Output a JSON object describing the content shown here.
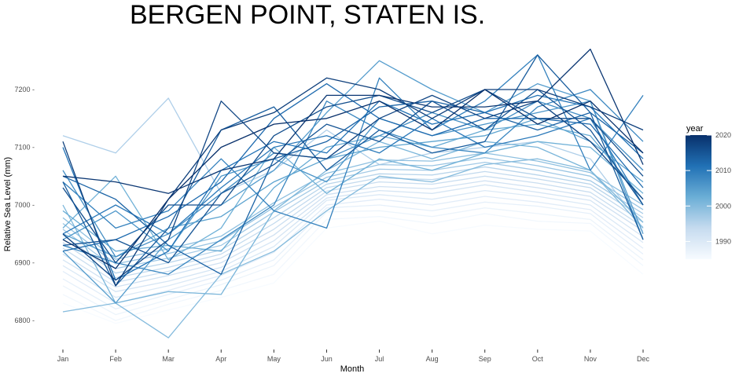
{
  "chart_data": {
    "type": "line",
    "title": "BERGEN POINT, STATEN IS.",
    "xlabel": "Month",
    "ylabel": "Relative Sea Level (mm)",
    "categories": [
      "Jan",
      "Feb",
      "Mar",
      "Apr",
      "May",
      "Jun",
      "Jul",
      "Aug",
      "Sep",
      "Oct",
      "Nov",
      "Dec"
    ],
    "ylim": [
      6755,
      6285
    ],
    "yticks": [
      6800,
      6900,
      7000,
      7100,
      7200
    ],
    "yticks_labels": [
      "6800 -",
      "6900 -",
      "7000 -",
      "7100 -",
      "7200 -"
    ],
    "grid": false,
    "legend": {
      "title": "year",
      "position": "right",
      "colorbar_range": [
        1985,
        2020
      ],
      "ticks": [
        1990,
        2000,
        2010,
        2020
      ],
      "colors": [
        "#f7fbff",
        "#c6dbef",
        "#6baed6",
        "#2171b5",
        "#08306b"
      ]
    },
    "series": [
      {
        "year": 1985,
        "values": [
          6830,
          6795,
          6818,
          6840,
          6865,
          6960,
          6972,
          6950,
          6965,
          6958,
          6955,
          6880
        ]
      },
      {
        "year": 1986,
        "values": [
          6845,
          6800,
          6828,
          6852,
          6880,
          6975,
          6980,
          6968,
          6985,
          6972,
          6968,
          6895
        ]
      },
      {
        "year": 1987,
        "values": [
          6860,
          6810,
          6836,
          6862,
          6895,
          6988,
          6990,
          6980,
          6995,
          6985,
          6975,
          6905
        ]
      },
      {
        "year": 1988,
        "values": [
          6872,
          6820,
          6845,
          6870,
          6905,
          6995,
          7000,
          6990,
          7005,
          6998,
          6985,
          6915
        ]
      },
      {
        "year": 1989,
        "values": [
          6885,
          6830,
          6852,
          6878,
          6918,
          7000,
          7010,
          7000,
          7015,
          7005,
          6992,
          6925
        ]
      },
      {
        "year": 1990,
        "values": [
          6895,
          6840,
          6860,
          6885,
          6928,
          7008,
          7018,
          7010,
          7025,
          7015,
          7000,
          6935
        ]
      },
      {
        "year": 1991,
        "values": [
          6905,
          6850,
          6868,
          6892,
          6938,
          7012,
          7025,
          7020,
          7035,
          7022,
          7008,
          6945
        ]
      },
      {
        "year": 1992,
        "values": [
          6915,
          6858,
          6878,
          6900,
          6948,
          7018,
          7032,
          7028,
          7042,
          7030,
          7015,
          6955
        ]
      },
      {
        "year": 1993,
        "values": [
          6925,
          6866,
          6885,
          6908,
          6958,
          7024,
          7040,
          7036,
          7050,
          7038,
          7022,
          6962
        ]
      },
      {
        "year": 1994,
        "values": [
          6935,
          6874,
          6892,
          6915,
          6968,
          7030,
          7047,
          7044,
          7058,
          7045,
          7030,
          6970
        ]
      },
      {
        "year": 1995,
        "values": [
          6948,
          6882,
          6900,
          6922,
          6978,
          7036,
          7054,
          7052,
          7066,
          7052,
          7036,
          6978
        ]
      },
      {
        "year": 1996,
        "values": [
          7120,
          7090,
          7185,
          7020,
          7060,
          7130,
          7070,
          7090,
          7100,
          7110,
          7080,
          6960
        ]
      },
      {
        "year": 1997,
        "values": [
          6958,
          6890,
          6908,
          6930,
          6988,
          7042,
          7062,
          7060,
          7074,
          7060,
          7042,
          6985
        ]
      },
      {
        "year": 1998,
        "values": [
          6968,
          6898,
          6916,
          6938,
          6996,
          7048,
          7070,
          7068,
          7082,
          7068,
          7050,
          6992
        ]
      },
      {
        "year": 1999,
        "values": [
          6978,
          6906,
          6924,
          6946,
          7004,
          7055,
          7078,
          7076,
          7090,
          7076,
          7056,
          7000
        ]
      },
      {
        "year": 2000,
        "values": [
          6815,
          6830,
          6770,
          6880,
          6920,
          6990,
          7050,
          7040,
          7070,
          7080,
          7060,
          6960
        ]
      },
      {
        "year": 2001,
        "values": [
          7000,
          6830,
          6850,
          6845,
          6990,
          7060,
          7110,
          7080,
          7110,
          7100,
          7060,
          6970
        ]
      },
      {
        "year": 2002,
        "values": [
          6960,
          7050,
          6905,
          6960,
          7100,
          7020,
          7080,
          7060,
          7090,
          7110,
          7100,
          7020
        ]
      },
      {
        "year": 2003,
        "values": [
          6990,
          6920,
          6930,
          6920,
          7030,
          7100,
          7120,
          7100,
          7130,
          7140,
          7120,
          7010
        ]
      },
      {
        "year": 2004,
        "values": [
          6950,
          6910,
          6960,
          6980,
          7040,
          7080,
          7100,
          7110,
          7120,
          7150,
          7110,
          7040
        ]
      },
      {
        "year": 2005,
        "values": [
          6920,
          6830,
          6940,
          7000,
          7060,
          7160,
          7250,
          7200,
          7160,
          7210,
          7180,
          6950
        ]
      },
      {
        "year": 2006,
        "values": [
          6940,
          6990,
          6920,
          7050,
          7080,
          7040,
          7150,
          7120,
          7140,
          7160,
          7180,
          6940
        ]
      },
      {
        "year": 2007,
        "values": [
          7060,
          6910,
          6950,
          7020,
          7090,
          7080,
          7120,
          7160,
          7130,
          7180,
          7150,
          7060
        ]
      },
      {
        "year": 2008,
        "values": [
          6930,
          6900,
          6880,
          6940,
          7000,
          7180,
          7130,
          7100,
          7090,
          7170,
          7200,
          7110
        ]
      },
      {
        "year": 2009,
        "values": [
          7040,
          6960,
          6990,
          7080,
          6990,
          6960,
          7220,
          7130,
          7180,
          7260,
          7060,
          7190
        ]
      },
      {
        "year": 2010,
        "values": [
          6950,
          7000,
          6950,
          7030,
          7100,
          7120,
          7090,
          7150,
          7100,
          7120,
          7150,
          7000
        ]
      },
      {
        "year": 2011,
        "values": [
          7100,
          6870,
          6920,
          7060,
          7110,
          7090,
          7180,
          7140,
          7160,
          7190,
          7170,
          7080
        ]
      },
      {
        "year": 2012,
        "values": [
          6920,
          6940,
          6980,
          7040,
          7150,
          7210,
          7150,
          7120,
          7150,
          7150,
          7140,
          7030
        ]
      },
      {
        "year": 2013,
        "values": [
          7050,
          7010,
          6930,
          6880,
          7080,
          7110,
          7170,
          7180,
          7160,
          7130,
          7160,
          7090
        ]
      },
      {
        "year": 2014,
        "values": [
          7040,
          6860,
          6960,
          7130,
          7170,
          7060,
          7130,
          7090,
          7110,
          7260,
          7160,
          6940
        ]
      },
      {
        "year": 2015,
        "values": [
          6930,
          6940,
          6900,
          7020,
          7070,
          7140,
          7110,
          7180,
          7130,
          7200,
          7130,
          7000
        ]
      },
      {
        "year": 2016,
        "values": [
          7030,
          6900,
          7000,
          7000,
          7120,
          7170,
          7190,
          7160,
          7200,
          7150,
          7150,
          7050
        ]
      },
      {
        "year": 2017,
        "values": [
          6950,
          6870,
          6940,
          7180,
          7090,
          7080,
          7150,
          7190,
          7150,
          7180,
          7110,
          7010
        ]
      },
      {
        "year": 2018,
        "values": [
          7110,
          6860,
          7010,
          7130,
          7160,
          7220,
          7200,
          7150,
          7200,
          7200,
          7170,
          7130
        ]
      },
      {
        "year": 2019,
        "values": [
          7050,
          7040,
          7020,
          7060,
          7080,
          7190,
          7190,
          7170,
          7170,
          7180,
          7270,
          7070
        ]
      },
      {
        "year": 2020,
        "values": [
          6940,
          6890,
          7010,
          7100,
          7140,
          7150,
          7180,
          7130,
          7200,
          7140,
          7180,
          7090
        ]
      }
    ]
  }
}
